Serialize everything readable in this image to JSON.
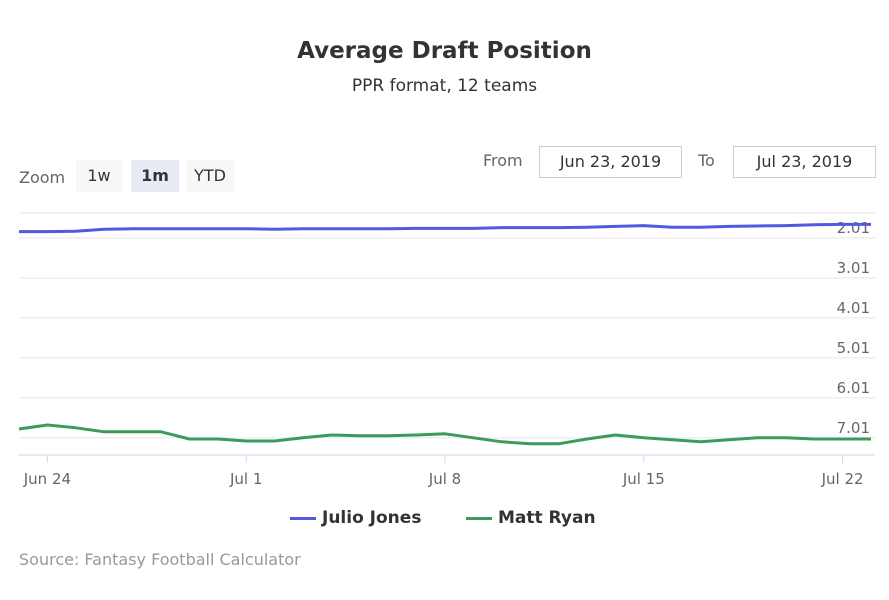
{
  "chart_data": {
    "type": "line",
    "title": "Average Draft Position",
    "subtitle": "PPR format, 12 teams",
    "x_start": "2019-06-23",
    "x_tick_labels": [
      "Jun 24",
      "Jul 1",
      "Jul 8",
      "Jul 15",
      "Jul 22"
    ],
    "y_tick_labels": [
      "2.01",
      "3.01",
      "4.01",
      "5.01",
      "6.01",
      "7.01"
    ],
    "y_ticks": [
      2.01,
      3.01,
      4.01,
      5.01,
      6.01,
      7.01
    ],
    "ylim": [
      1.385,
      7.44
    ],
    "y_reversed": true,
    "grid": true,
    "legend_position": "bottom-center",
    "series": [
      {
        "name": "Julio Jones",
        "color": "#4f5ae0",
        "values": [
          1.85,
          1.85,
          1.84,
          1.79,
          1.78,
          1.78,
          1.78,
          1.78,
          1.78,
          1.79,
          1.78,
          1.78,
          1.78,
          1.78,
          1.77,
          1.77,
          1.77,
          1.75,
          1.75,
          1.75,
          1.74,
          1.72,
          1.7,
          1.74,
          1.74,
          1.72,
          1.71,
          1.7,
          1.68,
          1.67,
          1.67
        ]
      },
      {
        "name": "Matt Ryan",
        "color": "#3d9b5a",
        "values": [
          6.79,
          6.69,
          6.76,
          6.86,
          6.86,
          6.86,
          7.04,
          7.04,
          7.09,
          7.09,
          7.01,
          6.94,
          6.96,
          6.96,
          6.94,
          6.91,
          7.01,
          7.11,
          7.16,
          7.16,
          7.04,
          6.94,
          7.01,
          7.06,
          7.11,
          7.06,
          7.01,
          7.01,
          7.04,
          7.04,
          7.04
        ]
      }
    ]
  },
  "range_selector": {
    "zoom_label": "Zoom",
    "buttons": [
      "1w",
      "1m",
      "YTD"
    ],
    "selected": "1m",
    "from_label": "From",
    "from_value": "Jun 23, 2019",
    "to_label": "To",
    "to_value": "Jul 23, 2019"
  },
  "credits": "Source: Fantasy Football Calculator"
}
